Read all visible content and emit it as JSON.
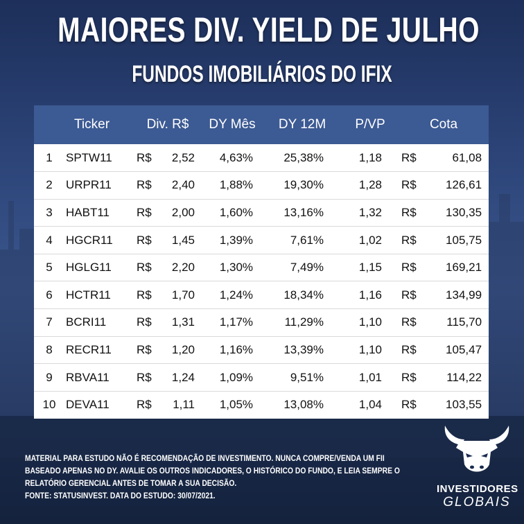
{
  "title": "MAIORES DIV. YIELD DE JULHO",
  "subtitle": "FUNDOS IMOBILIÁRIOS DO IFIX",
  "table": {
    "headers": [
      "",
      "Ticker",
      "Div. R$",
      "DY Mês",
      "DY 12M",
      "P/VP",
      "Cota"
    ],
    "rows": [
      {
        "rank": "1",
        "ticker": "SPTW11",
        "div_cur": "R$",
        "div": "2,52",
        "dy_mes": "4,63%",
        "dy_12m": "25,38%",
        "pvp": "1,18",
        "cota_cur": "R$",
        "cota": "61,08"
      },
      {
        "rank": "2",
        "ticker": "URPR11",
        "div_cur": "R$",
        "div": "2,40",
        "dy_mes": "1,88%",
        "dy_12m": "19,30%",
        "pvp": "1,28",
        "cota_cur": "R$",
        "cota": "126,61"
      },
      {
        "rank": "3",
        "ticker": "HABT11",
        "div_cur": "R$",
        "div": "2,00",
        "dy_mes": "1,60%",
        "dy_12m": "13,16%",
        "pvp": "1,32",
        "cota_cur": "R$",
        "cota": "130,35"
      },
      {
        "rank": "4",
        "ticker": "HGCR11",
        "div_cur": "R$",
        "div": "1,45",
        "dy_mes": "1,39%",
        "dy_12m": "7,61%",
        "pvp": "1,02",
        "cota_cur": "R$",
        "cota": "105,75"
      },
      {
        "rank": "5",
        "ticker": "HGLG11",
        "div_cur": "R$",
        "div": "2,20",
        "dy_mes": "1,30%",
        "dy_12m": "7,49%",
        "pvp": "1,15",
        "cota_cur": "R$",
        "cota": "169,21"
      },
      {
        "rank": "6",
        "ticker": "HCTR11",
        "div_cur": "R$",
        "div": "1,70",
        "dy_mes": "1,24%",
        "dy_12m": "18,34%",
        "pvp": "1,16",
        "cota_cur": "R$",
        "cota": "134,99"
      },
      {
        "rank": "7",
        "ticker": "BCRI11",
        "div_cur": "R$",
        "div": "1,31",
        "dy_mes": "1,17%",
        "dy_12m": "11,29%",
        "pvp": "1,10",
        "cota_cur": "R$",
        "cota": "115,70"
      },
      {
        "rank": "8",
        "ticker": "RECR11",
        "div_cur": "R$",
        "div": "1,20",
        "dy_mes": "1,16%",
        "dy_12m": "13,39%",
        "pvp": "1,10",
        "cota_cur": "R$",
        "cota": "105,47"
      },
      {
        "rank": "9",
        "ticker": "RBVA11",
        "div_cur": "R$",
        "div": "1,24",
        "dy_mes": "1,09%",
        "dy_12m": "9,51%",
        "pvp": "1,01",
        "cota_cur": "R$",
        "cota": "114,22"
      },
      {
        "rank": "10",
        "ticker": "DEVA11",
        "div_cur": "R$",
        "div": "1,11",
        "dy_mes": "1,05%",
        "dy_12m": "13,08%",
        "pvp": "1,04",
        "cota_cur": "R$",
        "cota": "103,55"
      }
    ]
  },
  "disclaimer": [
    "MATERIAL PARA ESTUDO NÃO É RECOMENDAÇÃO DE INVESTIMENTO. NUNCA COMPRE/VENDA UM FII",
    "BASEADO APENAS NO DY. AVALIE OS OUTROS INDICADORES, O HISTÓRICO DO FUNDO, E LEIA SEMPRE O",
    "RELATÓRIO GERENCIAL ANTES DE TOMAR A SUA DECISÃO.",
    "FONTE: STATUSINVEST. DATA DO ESTUDO: 30/07/2021."
  ],
  "logo": {
    "name": "INVESTIDORES",
    "sub": "GLOBAIS",
    "icon": "bull-head-icon"
  },
  "colors": {
    "header_bg": "#3c5a93",
    "row_bg": "#ffffff",
    "text_light": "#ffffff"
  }
}
